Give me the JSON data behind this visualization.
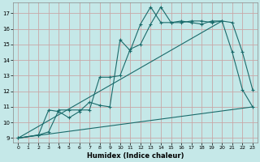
{
  "title": "",
  "xlabel": "Humidex (Indice chaleur)",
  "bg_color": "#c5e8e8",
  "grid_color": "#c8a8a8",
  "line_color": "#1a6b6b",
  "xlim": [
    -0.5,
    23.5
  ],
  "ylim": [
    8.7,
    17.7
  ],
  "yticks": [
    9,
    10,
    11,
    12,
    13,
    14,
    15,
    16,
    17
  ],
  "xticks": [
    0,
    1,
    2,
    3,
    4,
    5,
    6,
    7,
    8,
    9,
    10,
    11,
    12,
    13,
    14,
    15,
    16,
    17,
    18,
    19,
    20,
    21,
    22,
    23
  ],
  "line1_x": [
    0,
    2,
    3,
    4,
    5,
    6,
    7,
    8,
    9,
    10,
    11,
    12,
    13,
    14,
    15,
    16,
    17,
    18,
    19,
    20,
    21,
    22,
    23
  ],
  "line1_y": [
    9,
    9.2,
    10.8,
    10.7,
    10.3,
    10.7,
    11.3,
    11.1,
    11.0,
    15.3,
    14.6,
    16.3,
    17.4,
    16.4,
    16.4,
    16.5,
    16.4,
    16.3,
    16.5,
    16.5,
    14.5,
    12.1,
    11.0
  ],
  "line2_x": [
    0,
    2,
    3,
    4,
    5,
    6,
    7,
    8,
    9,
    10,
    11,
    12,
    13,
    14,
    15,
    16,
    17,
    18,
    19,
    20,
    21,
    22,
    23
  ],
  "line2_y": [
    9,
    9.2,
    9.4,
    10.8,
    10.8,
    10.8,
    10.8,
    12.9,
    12.9,
    13.0,
    14.7,
    15.0,
    16.3,
    17.4,
    16.4,
    16.4,
    16.5,
    16.5,
    16.4,
    16.5,
    16.4,
    14.5,
    12.1
  ],
  "line3_x": [
    0,
    23
  ],
  "line3_y": [
    9,
    11.0
  ],
  "line4_x": [
    0,
    20
  ],
  "line4_y": [
    9,
    16.5
  ]
}
